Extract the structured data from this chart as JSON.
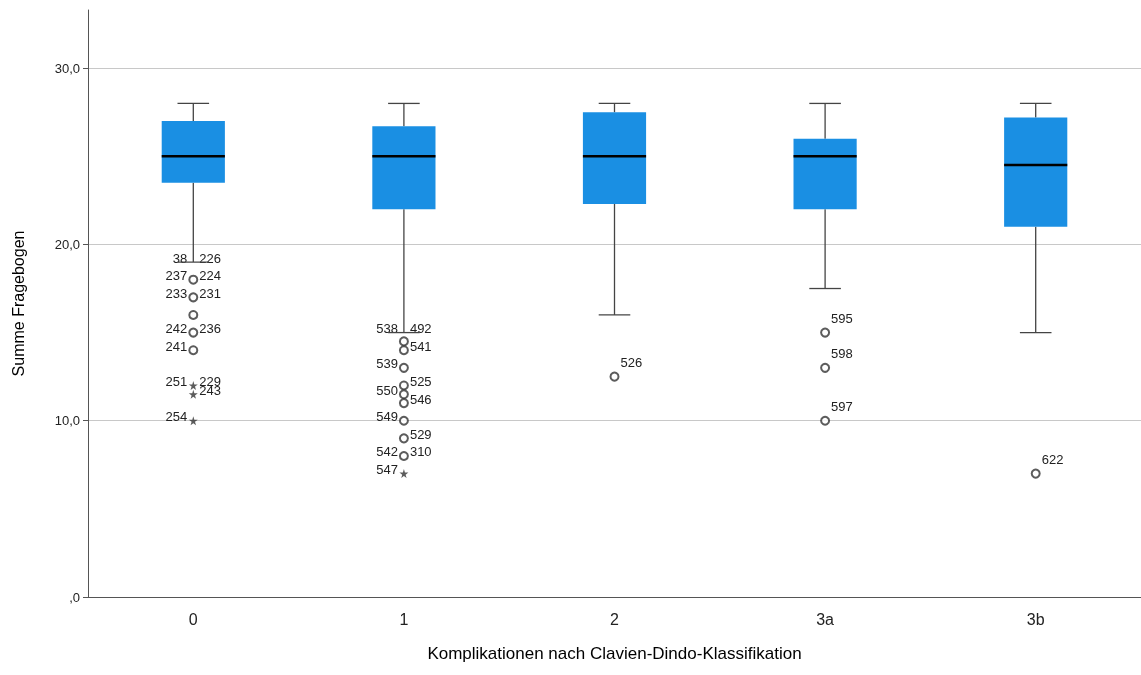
{
  "chart_data": {
    "type": "box",
    "xlabel": "Komplikationen nach Clavien-Dindo-Klassifikation",
    "ylabel": "Summe Fragebogen",
    "categories": [
      "0",
      "1",
      "2",
      "3a",
      "3b"
    ],
    "ylim": [
      0,
      33.3
    ],
    "yticks": [
      {
        "value": 0,
        "label": ",0"
      },
      {
        "value": 10,
        "label": "10,0"
      },
      {
        "value": 20,
        "label": "20,0"
      },
      {
        "value": 30,
        "label": "30,0"
      }
    ],
    "grid": "y",
    "series": [
      {
        "color": "#1a8fe3",
        "boxes": [
          {
            "low": 19,
            "q1": 23.5,
            "median": 25,
            "q3": 27,
            "high": 28
          },
          {
            "low": 15,
            "q1": 22,
            "median": 25,
            "q3": 26.7,
            "high": 28
          },
          {
            "low": 16,
            "q1": 22.3,
            "median": 25,
            "q3": 27.5,
            "high": 28
          },
          {
            "low": 17.5,
            "q1": 22,
            "median": 25,
            "q3": 26,
            "high": 28
          },
          {
            "low": 15,
            "q1": 21,
            "median": 24.5,
            "q3": 27.2,
            "high": 28
          }
        ]
      },
      {
        "type": "scatter",
        "marker": "circle",
        "color": "#333333",
        "x": [
          "0",
          "0",
          "0",
          "0",
          "0",
          "1",
          "1",
          "1",
          "1",
          "1",
          "1",
          "1",
          "1",
          "1",
          "2",
          "3a",
          "3a",
          "3a",
          "3b"
        ],
        "values": [
          18,
          17,
          16,
          15,
          14,
          14.5,
          14,
          13,
          12,
          11.5,
          11,
          10,
          9,
          8,
          12.5,
          15,
          13,
          10,
          7
        ]
      },
      {
        "type": "scatter",
        "marker": "star",
        "color": "#333333",
        "x": [
          "0",
          "0",
          "0",
          "1"
        ],
        "values": [
          12,
          11.5,
          10,
          7
        ]
      }
    ],
    "annotations": [
      {
        "text": "38",
        "x": "0",
        "y": 19
      },
      {
        "text": "226",
        "x": "0",
        "y": 19
      },
      {
        "text": "237",
        "x": "0",
        "y": 18
      },
      {
        "text": "224",
        "x": "0",
        "y": 18
      },
      {
        "text": "233",
        "x": "0",
        "y": 17
      },
      {
        "text": "231",
        "x": "0",
        "y": 17
      },
      {
        "text": "242",
        "x": "0",
        "y": 15
      },
      {
        "text": "236",
        "x": "0",
        "y": 15
      },
      {
        "text": "241",
        "x": "0",
        "y": 14
      },
      {
        "text": "229",
        "x": "0",
        "y": 12
      },
      {
        "text": "251",
        "x": "0",
        "y": 12
      },
      {
        "text": "243",
        "x": "0",
        "y": 11.5
      },
      {
        "text": "254",
        "x": "0",
        "y": 10
      },
      {
        "text": "538",
        "x": "1",
        "y": 15
      },
      {
        "text": "492",
        "x": "1",
        "y": 15
      },
      {
        "text": "539",
        "x": "1",
        "y": 13
      },
      {
        "text": "541",
        "x": "1",
        "y": 14
      },
      {
        "text": "550",
        "x": "1",
        "y": 11.5
      },
      {
        "text": "525",
        "x": "1",
        "y": 12
      },
      {
        "text": "549",
        "x": "1",
        "y": 10
      },
      {
        "text": "546",
        "x": "1",
        "y": 11
      },
      {
        "text": "542",
        "x": "1",
        "y": 8
      },
      {
        "text": "529",
        "x": "1",
        "y": 9
      },
      {
        "text": "547",
        "x": "1",
        "y": 7
      },
      {
        "text": "310",
        "x": "1",
        "y": 8
      },
      {
        "text": "526",
        "x": "2",
        "y": 12.5
      },
      {
        "text": "595",
        "x": "3a",
        "y": 15
      },
      {
        "text": "598",
        "x": "3a",
        "y": 13
      },
      {
        "text": "597",
        "x": "3a",
        "y": 10
      },
      {
        "text": "622",
        "x": "3b",
        "y": 7
      }
    ]
  }
}
